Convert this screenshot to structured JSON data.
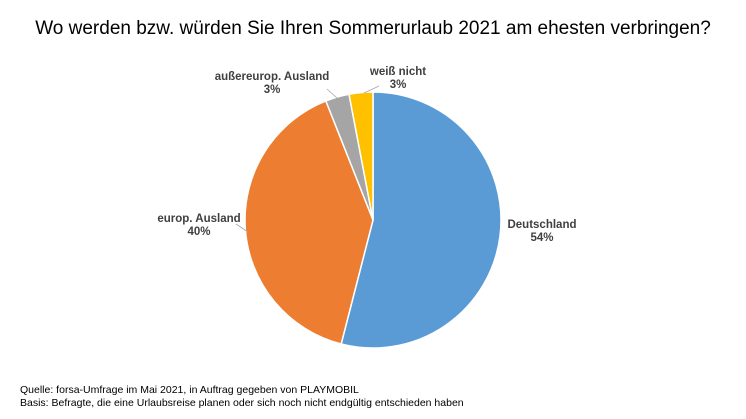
{
  "chart_data": {
    "type": "pie",
    "title": "Wo werden bzw. würden Sie Ihren Sommerurlaub 2021 am ehesten verbringen?",
    "slices": [
      {
        "label": "Deutschland",
        "value": 54,
        "value_label": "54%",
        "color": "#5B9BD5"
      },
      {
        "label": "europ. Ausland",
        "value": 40,
        "value_label": "40%",
        "color": "#ED7D31"
      },
      {
        "label": "außereurop. Ausland",
        "value": 3,
        "value_label": "3%",
        "color": "#A5A5A5"
      },
      {
        "label": "weiß nicht",
        "value": 3,
        "value_label": "3%",
        "color": "#FFC000"
      }
    ],
    "start": "12 o'clock, clockwise",
    "legend": "none"
  },
  "footnotes": {
    "source": "Quelle: forsa-Umfrage im Mai 2021, in Auftrag gegeben von PLAYMOBIL",
    "basis": "Basis: Befragte, die eine Urlaubsreise planen oder sich noch nicht endgültig entschieden haben"
  }
}
